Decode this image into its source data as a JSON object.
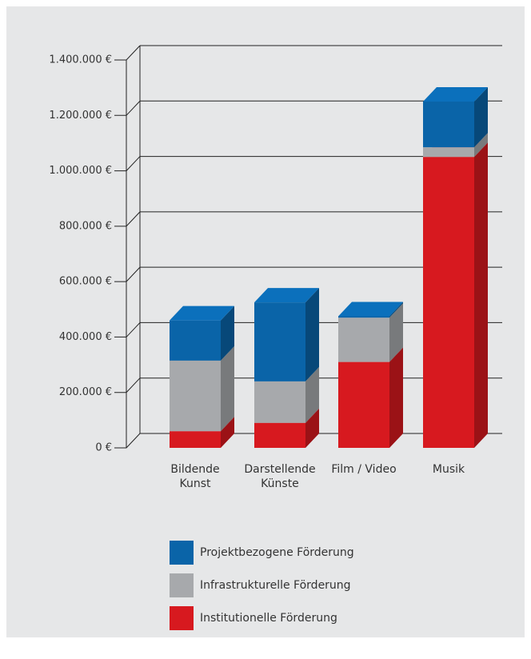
{
  "chart_data": {
    "type": "bar3d_stacked",
    "categories": [
      "Bildende\nKunst",
      "Darstellende\nKünste",
      "Film / Video",
      "Musik"
    ],
    "series": [
      {
        "name": "Institutionelle Förderung",
        "color": "#d7191f",
        "values": [
          60000,
          90000,
          310000,
          1050000
        ]
      },
      {
        "name": "Infrastrukturelle Förderung",
        "color": "#a7a9ac",
        "values": [
          255000,
          150000,
          160000,
          35000
        ]
      },
      {
        "name": "Projektbezogene Förderung",
        "color": "#0a64a8",
        "values": [
          145000,
          285000,
          5000,
          165000
        ]
      }
    ],
    "ylim": [
      0,
      1400000
    ],
    "yticks": [
      {
        "value": 0,
        "label": "0 €"
      },
      {
        "value": 200000,
        "label": "200.000 €"
      },
      {
        "value": 400000,
        "label": "400.000 €"
      },
      {
        "value": 600000,
        "label": "600.000 €"
      },
      {
        "value": 800000,
        "label": "800.000 €"
      },
      {
        "value": 1000000,
        "label": "1.000.000 €"
      },
      {
        "value": 1200000,
        "label": "1.200.000 €"
      },
      {
        "value": 1400000,
        "label": "1.400.000 €"
      }
    ],
    "grid": true
  }
}
